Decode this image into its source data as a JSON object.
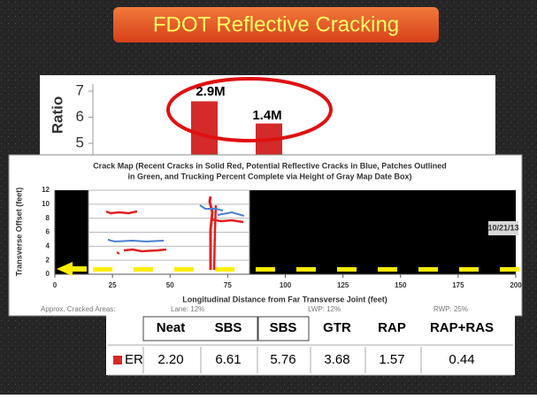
{
  "title": "FDOT Reflective Cracking",
  "bar_chart": {
    "y_label": "Ratio",
    "yticks": [
      5,
      6,
      7
    ],
    "annotations": [
      "2.9M",
      "1.4M"
    ]
  },
  "crack_map": {
    "title_lines": [
      "Crack Map (Recent Cracks in Solid Red, Potential Reflective Cracks in Blue, Patches Outlined",
      "in Green, and Trucking Percent Complete via Height of Gray Map Date Box)"
    ],
    "y_label": "Transverse Offset (feet)",
    "x_label": "Longitudinal Distance from Far Transverse Joint (feet)",
    "xticks": [
      0,
      25,
      50,
      75,
      100,
      125,
      150,
      175,
      200
    ],
    "yticks": [
      0,
      2,
      4,
      6,
      8,
      10,
      12
    ],
    "date": "10/21/13",
    "footer": [
      "Approx. Cracked Areas:",
      "Lane: 12%",
      "LWP: 12%",
      "RWP: 25%"
    ]
  },
  "table": {
    "columns": [
      "Neat",
      "SBS",
      "SBS",
      "GTR",
      "RAP",
      "RAP+RAS"
    ],
    "rows": [
      {
        "label": "ER",
        "values": [
          "2.20",
          "6.61",
          "5.76",
          "3.68",
          "1.57",
          "0.44"
        ]
      }
    ]
  }
}
